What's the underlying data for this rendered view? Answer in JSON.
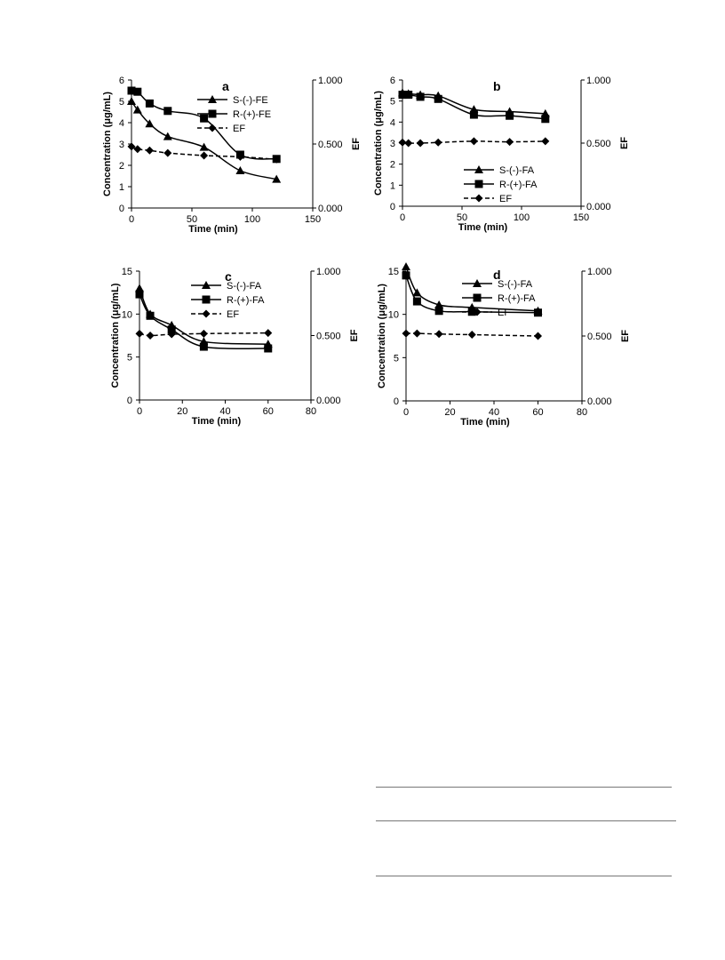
{
  "chart_data": [
    {
      "type": "line",
      "panel_label": "a",
      "xlabel": "Time (min)",
      "ylabel": "Concentration (μg/mL)",
      "y2label": "EF",
      "xlim": [
        0,
        150
      ],
      "ylim": [
        0,
        6
      ],
      "y2lim": [
        0,
        1
      ],
      "xticks": [
        "0",
        "50",
        "100",
        "150"
      ],
      "yticks": [
        "0",
        "1",
        "2",
        "3",
        "4",
        "5",
        "6"
      ],
      "y2ticks": [
        "0.000",
        "0.500",
        "1.000"
      ],
      "legend_position": "top-right",
      "series": [
        {
          "name": "S-(-)-FE",
          "marker": "triangle",
          "dash": false,
          "axis": "left",
          "x": [
            0,
            5,
            15,
            30,
            60,
            90,
            120
          ],
          "y": [
            5.0,
            4.6,
            3.95,
            3.35,
            2.85,
            1.75,
            1.35
          ]
        },
        {
          "name": "R-(+)-FE",
          "marker": "square",
          "dash": false,
          "axis": "left",
          "x": [
            0,
            5,
            15,
            30,
            60,
            90,
            120
          ],
          "y": [
            5.5,
            5.45,
            4.9,
            4.55,
            4.2,
            2.5,
            2.3
          ]
        },
        {
          "name": "EF",
          "marker": "diamond",
          "dash": true,
          "axis": "right",
          "x": [
            0,
            5,
            15,
            30,
            60,
            90,
            120
          ],
          "y": [
            0.48,
            0.46,
            0.45,
            0.43,
            0.41,
            0.4,
            0.38
          ]
        }
      ]
    },
    {
      "type": "line",
      "panel_label": "b",
      "xlabel": "Time (min)",
      "ylabel": "Concentration (μg/mL)",
      "y2label": "EF",
      "xlim": [
        0,
        150
      ],
      "ylim": [
        0,
        6
      ],
      "y2lim": [
        0,
        1
      ],
      "xticks": [
        "0",
        "50",
        "100",
        "150"
      ],
      "yticks": [
        "0",
        "1",
        "2",
        "3",
        "4",
        "5",
        "6"
      ],
      "y2ticks": [
        "0.000",
        "0.500",
        "1.000"
      ],
      "legend_position": "bottom-right",
      "series": [
        {
          "name": "S-(-)-FA",
          "marker": "triangle",
          "dash": false,
          "axis": "left",
          "x": [
            0,
            5,
            15,
            30,
            60,
            90,
            120
          ],
          "y": [
            5.4,
            5.35,
            5.3,
            5.25,
            4.6,
            4.5,
            4.4
          ]
        },
        {
          "name": "R-(+)-FA",
          "marker": "square",
          "dash": false,
          "axis": "left",
          "x": [
            0,
            5,
            15,
            30,
            60,
            90,
            120
          ],
          "y": [
            5.3,
            5.3,
            5.2,
            5.1,
            4.35,
            4.3,
            4.15
          ]
        },
        {
          "name": "EF",
          "marker": "diamond",
          "dash": true,
          "axis": "right",
          "x": [
            0,
            5,
            15,
            30,
            60,
            90,
            120
          ],
          "y": [
            0.505,
            0.5,
            0.5,
            0.505,
            0.515,
            0.51,
            0.515
          ]
        }
      ]
    },
    {
      "type": "line",
      "panel_label": "c",
      "xlabel": "Time (min)",
      "ylabel": "Concentration (μg/mL)",
      "y2label": "EF",
      "xlim": [
        0,
        80
      ],
      "ylim": [
        0,
        15
      ],
      "y2lim": [
        0,
        1
      ],
      "xticks": [
        "0",
        "20",
        "40",
        "60",
        "80"
      ],
      "yticks": [
        "0",
        "5",
        "10",
        "15"
      ],
      "y2ticks": [
        "0.000",
        "0.500",
        "1.000"
      ],
      "legend_position": "top-right",
      "series": [
        {
          "name": "S-(-)-FA",
          "marker": "triangle",
          "dash": false,
          "axis": "left",
          "x": [
            0,
            5,
            15,
            30,
            60
          ],
          "y": [
            13.0,
            10.0,
            8.7,
            6.8,
            6.5
          ]
        },
        {
          "name": "R-(+)-FA",
          "marker": "square",
          "dash": false,
          "axis": "left",
          "x": [
            0,
            5,
            15,
            30,
            60
          ],
          "y": [
            12.3,
            9.8,
            8.2,
            6.2,
            6.0
          ]
        },
        {
          "name": "EF",
          "marker": "diamond",
          "dash": true,
          "axis": "right",
          "x": [
            0,
            5,
            15,
            30,
            60
          ],
          "y": [
            0.515,
            0.5,
            0.51,
            0.515,
            0.52
          ]
        }
      ]
    },
    {
      "type": "line",
      "panel_label": "d",
      "xlabel": "Time (min)",
      "ylabel": "Concentration (μg/mL)",
      "y2label": "EF",
      "xlim": [
        0,
        80
      ],
      "ylim": [
        0,
        15
      ],
      "y2lim": [
        0,
        1
      ],
      "xticks": [
        "0",
        "20",
        "40",
        "60",
        "80"
      ],
      "yticks": [
        "0",
        "5",
        "10",
        "15"
      ],
      "y2ticks": [
        "0.000",
        "0.500",
        "1.000"
      ],
      "legend_position": "top-right",
      "series": [
        {
          "name": "S-(-)-FA",
          "marker": "triangle",
          "dash": false,
          "axis": "left",
          "x": [
            0,
            5,
            15,
            30,
            60
          ],
          "y": [
            15.5,
            12.5,
            11.1,
            10.8,
            10.4
          ]
        },
        {
          "name": "R-(+)-FA",
          "marker": "square",
          "dash": false,
          "axis": "left",
          "x": [
            0,
            5,
            15,
            30,
            60
          ],
          "y": [
            14.5,
            11.5,
            10.4,
            10.3,
            10.2
          ]
        },
        {
          "name": "EF",
          "marker": "diamond",
          "dash": true,
          "axis": "right",
          "x": [
            0,
            5,
            15,
            30,
            60
          ],
          "y": [
            0.52,
            0.52,
            0.515,
            0.51,
            0.5
          ]
        }
      ]
    }
  ]
}
